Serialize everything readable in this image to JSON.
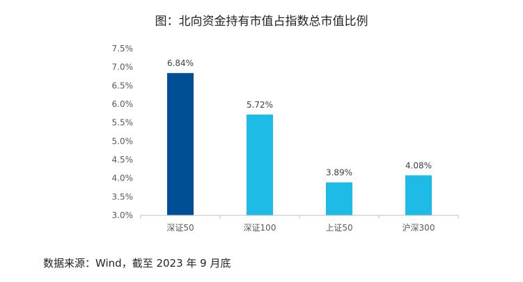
{
  "chart_data": {
    "type": "bar",
    "title": "图：北向资金持有市值占指数总市值比例",
    "categories": [
      "深证50",
      "深证100",
      "上证50",
      "沪深300"
    ],
    "values": [
      6.84,
      5.72,
      3.89,
      4.08
    ],
    "value_labels": [
      "6.84%",
      "5.72%",
      "3.89%",
      "4.08%"
    ],
    "ylim": [
      3.0,
      7.5
    ],
    "yticks": [
      3.0,
      3.5,
      4.0,
      4.5,
      5.0,
      5.5,
      6.0,
      6.5,
      7.0,
      7.5
    ],
    "ytick_labels": [
      "3.0%",
      "3.5%",
      "4.0%",
      "4.5%",
      "5.0%",
      "5.5%",
      "6.0%",
      "6.5%",
      "7.0%",
      "7.5%"
    ],
    "xlabel": "",
    "ylabel": "",
    "grid": false,
    "bar_colors": [
      "#004e95",
      "#1dbbe5",
      "#1dbbe5",
      "#1dbbe5"
    ],
    "axis_color": "#bfbfbf"
  },
  "source_note": "数据来源：Wind，截至 2023 年 9 月底"
}
